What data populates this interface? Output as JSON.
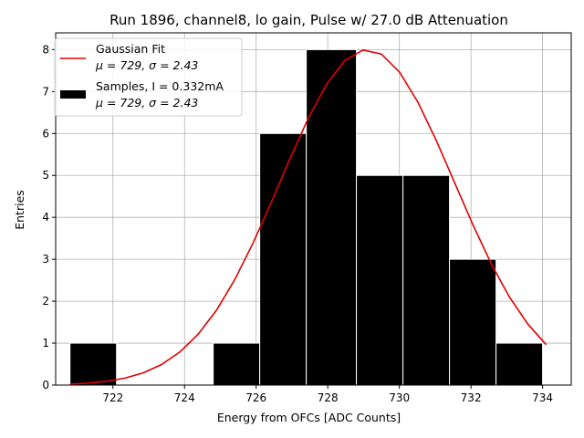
{
  "chart_data": {
    "type": "bar",
    "title": "Run 1896, channel8, lo gain, Pulse w/ 27.0 dB Attenuation",
    "xlabel": "Energy from OFCs [ADC Counts]",
    "ylabel": "Entries",
    "xlim": [
      720.4,
      734.8
    ],
    "ylim": [
      0,
      8.4
    ],
    "grid": true,
    "xticks": [
      722,
      724,
      726,
      728,
      730,
      732,
      734
    ],
    "yticks": [
      0,
      1,
      2,
      3,
      4,
      5,
      6,
      7,
      8
    ],
    "legend_position": "upper-left",
    "histogram": {
      "name": "Samples, I = 0.332mA",
      "stats": "μ = 729, σ = 2.43",
      "color": "#000000",
      "bins": [
        {
          "x0": 720.8,
          "x1": 722.1,
          "count": 1
        },
        {
          "x0": 722.1,
          "x1": 723.5,
          "count": 0
        },
        {
          "x0": 723.5,
          "x1": 724.8,
          "count": 0
        },
        {
          "x0": 724.8,
          "x1": 726.1,
          "count": 1
        },
        {
          "x0": 726.1,
          "x1": 727.4,
          "count": 6
        },
        {
          "x0": 727.4,
          "x1": 728.8,
          "count": 8
        },
        {
          "x0": 728.8,
          "x1": 730.1,
          "count": 5
        },
        {
          "x0": 730.1,
          "x1": 731.4,
          "count": 5
        },
        {
          "x0": 731.4,
          "x1": 732.7,
          "count": 3
        },
        {
          "x0": 732.7,
          "x1": 734.0,
          "count": 1
        }
      ]
    },
    "fit": {
      "name": "Gaussian Fit",
      "stats": "μ = 729, σ = 2.43",
      "color": "#e00000",
      "mean": 729.1,
      "sigma": 2.43,
      "amplitude": 8.0,
      "x_range": [
        720.8,
        734.1
      ]
    }
  }
}
